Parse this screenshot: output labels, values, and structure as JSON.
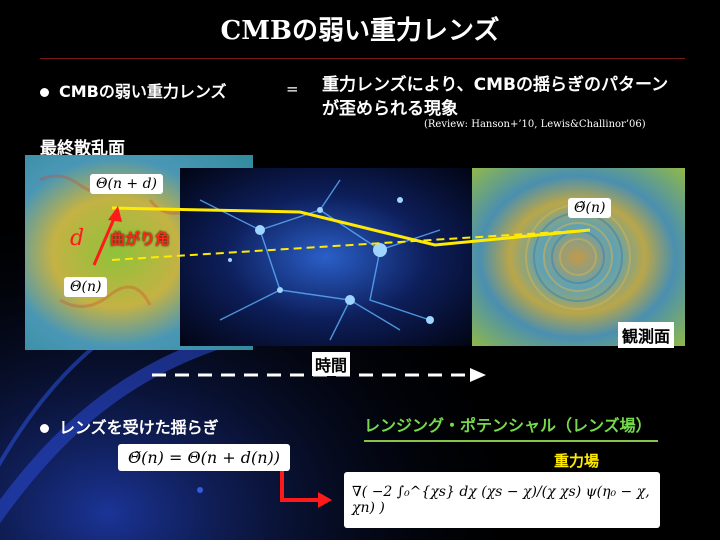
{
  "title": "CMBの弱い重力レンズ",
  "bullet1": {
    "term": "CMBの弱い重力レンズ",
    "equals": "=",
    "definition_line1": "重力レンズにより、CMBの揺らぎのパターン",
    "definition_line2": "が歪められる現象",
    "reference": "(Review:  Hanson+’10, Lewis&Challinor’06)"
  },
  "labels": {
    "last_scattering": "最終散乱面",
    "bend_angle": "曲がり角",
    "d_symbol": "d",
    "observation_plane": "観測面",
    "time": "時間"
  },
  "formulas": {
    "theta_shifted": "Θ(n + d)",
    "theta_tilde": "Θ̃(n)",
    "theta_n": "Θ(n)",
    "lensed": "Θ̃(n) = Θ(n + d(n))",
    "potential": "∇( −2 ∫₀^{χs} dχ (χs − χ)/(χ χs) ψ(η₀ − χ, χn) )"
  },
  "bullet2": {
    "text": "レンズを受けた揺らぎ"
  },
  "lensing_potential": {
    "heading": "レンジング・ポテンシャル（レンズ場）",
    "gravity_field": "重力場"
  },
  "colors": {
    "title_text": "#ffffff",
    "yellow": "#ffea00",
    "red": "#ff1a1a",
    "green_heading": "#76d94b",
    "gravity_label": "#ffea00",
    "potential_underline": "#8bc34a"
  }
}
